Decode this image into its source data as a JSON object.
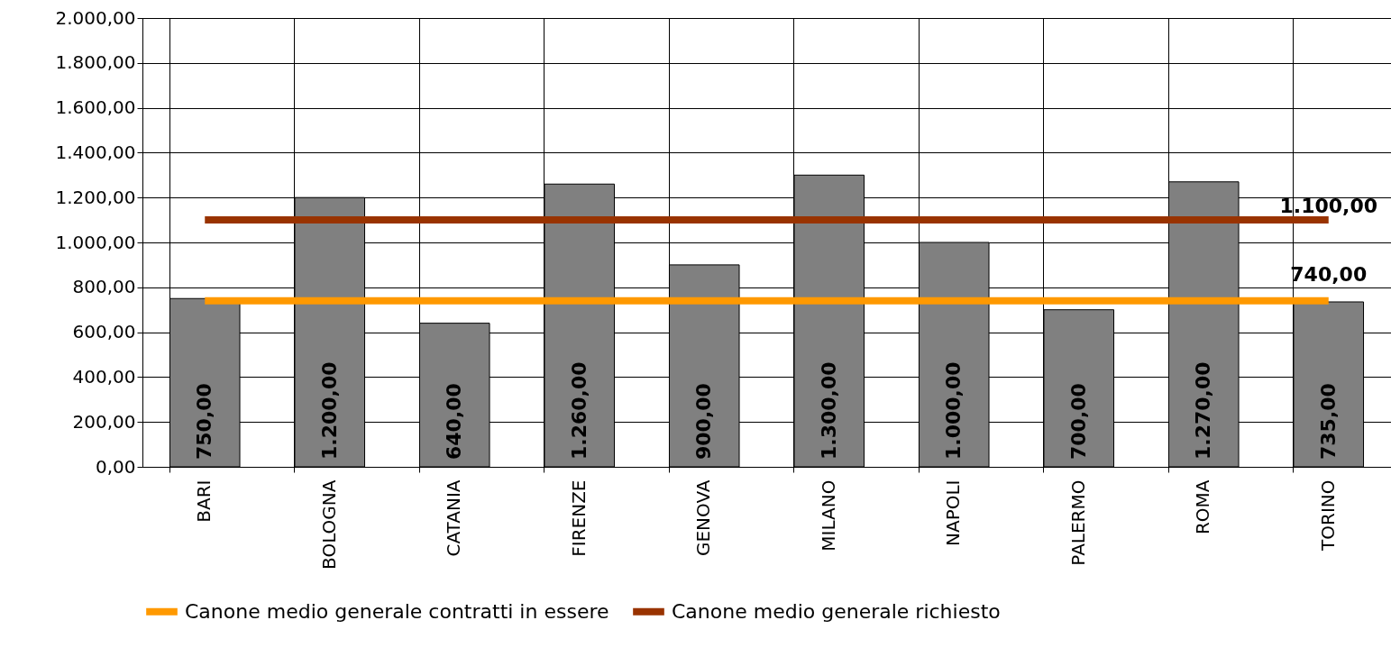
{
  "chart_data": {
    "type": "bar",
    "categories": [
      "BARI",
      "BOLOGNA",
      "CATANIA",
      "FIRENZE",
      "GENOVA",
      "MILANO",
      "NAPOLI",
      "PALERMO",
      "ROMA",
      "TORINO"
    ],
    "series": [
      {
        "color": "#808080",
        "values": [
          750,
          1200,
          640,
          1260,
          900,
          1300,
          1000,
          700,
          1270,
          735
        ],
        "value_labels": [
          "750,00",
          "1.200,00",
          "640,00",
          "1.260,00",
          "900,00",
          "1.300,00",
          "1.000,00",
          "700,00",
          "1.270,00",
          "735,00"
        ]
      },
      {
        "type": "line",
        "name": "Canone medio generale contratti in essere",
        "color": "#ff9900",
        "values": [
          740,
          740,
          740,
          740,
          740,
          740,
          740,
          740,
          740,
          740
        ],
        "value_labels": [
          null,
          null,
          null,
          null,
          null,
          null,
          null,
          null,
          null,
          "740,00"
        ]
      },
      {
        "type": "line",
        "name": "Canone medio generale richiesto",
        "color": "#993300",
        "values": [
          1100,
          1100,
          1100,
          1100,
          1100,
          1100,
          1100,
          1100,
          1100,
          1100
        ],
        "value_labels": [
          null,
          null,
          null,
          null,
          null,
          null,
          null,
          null,
          null,
          "1.100,00"
        ]
      }
    ],
    "ylim": [
      0,
      2000
    ],
    "yticks": [
      {
        "value": 0,
        "label": "0,00"
      },
      {
        "value": 200,
        "label": "200,00"
      },
      {
        "value": 400,
        "label": "400,00"
      },
      {
        "value": 600,
        "label": "600,00"
      },
      {
        "value": 800,
        "label": "800,00"
      },
      {
        "value": 1000,
        "label": "1.000,00"
      },
      {
        "value": 1200,
        "label": "1.200,00"
      },
      {
        "value": 1400,
        "label": "1.400,00"
      },
      {
        "value": 1600,
        "label": "1.600,00"
      },
      {
        "value": 1800,
        "label": "1.800,00"
      },
      {
        "value": 2000,
        "label": "2.000,00"
      }
    ],
    "grid": true,
    "legend": "bottom"
  }
}
